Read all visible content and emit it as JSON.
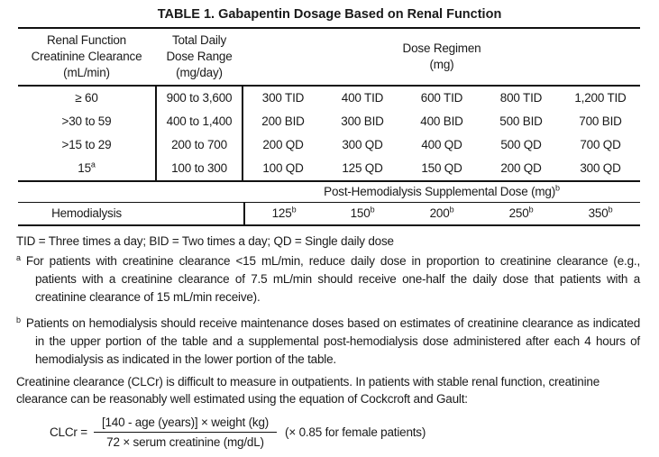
{
  "colors": {
    "background": "#ffffff",
    "text": "#1a1a1a",
    "rules": "#111111"
  },
  "title": "TABLE 1. Gabapentin Dosage Based on Renal Function",
  "table": {
    "header": {
      "col1": "Renal Function\nCreatinine Clearance\n(mL/min)",
      "col2": "Total Daily\nDose Range\n(mg/day)",
      "col3": "Dose Regimen\n(mg)"
    },
    "rows": [
      {
        "clcr": "≥ 60",
        "clcr_sup": "",
        "range": "900 to 3,600",
        "doses": [
          "300 TID",
          "400 TID",
          "600 TID",
          "800 TID",
          "1,200 TID"
        ]
      },
      {
        "clcr": ">30 to 59",
        "clcr_sup": "",
        "range": "400 to 1,400",
        "doses": [
          "200 BID",
          "300 BID",
          "400 BID",
          "500 BID",
          "700 BID"
        ]
      },
      {
        "clcr": ">15 to 29",
        "clcr_sup": "",
        "range": "200 to 700",
        "doses": [
          "200 QD",
          "300 QD",
          "400 QD",
          "500 QD",
          "700 QD"
        ]
      },
      {
        "clcr": "15",
        "clcr_sup": "a",
        "range": "100 to 300",
        "doses": [
          "100 QD",
          "125 QD",
          "150 QD",
          "200 QD",
          "300 QD"
        ]
      }
    ],
    "post_hemo": {
      "text": "Post-Hemodialysis Supplemental Dose (mg)",
      "sup": "b"
    },
    "hemo": {
      "label": "Hemodialysis",
      "values": [
        {
          "v": "125",
          "sup": "b"
        },
        {
          "v": "150",
          "sup": "b"
        },
        {
          "v": "200",
          "sup": "b"
        },
        {
          "v": "250",
          "sup": "b"
        },
        {
          "v": "350",
          "sup": "b"
        }
      ]
    }
  },
  "footnotes": {
    "abbrev": "TID = Three times a day; BID = Two times a day; QD = Single daily dose",
    "a": {
      "marker": "a",
      "text": "For patients with creatinine clearance <15 mL/min, reduce daily dose in proportion to creatinine clearance (e.g., patients with a creatinine clearance of 7.5 mL/min should receive one-half the daily dose that patients with a creatinine clearance of 15 mL/min receive)."
    },
    "b": {
      "marker": "b",
      "text": "Patients on hemodialysis should receive maintenance doses based on estimates of creatinine clearance as indicated in the upper portion of the table and a supplemental post-hemodialysis dose administered after each 4 hours of hemodialysis as indicated in the lower portion of the table."
    }
  },
  "paragraph": "Creatinine clearance (CLCr) is difficult to measure in outpatients. In patients with stable renal function, creatinine clearance can be reasonably well estimated using the equation of Cockcroft and Gault:",
  "formula": {
    "lhs": "CLCr =",
    "numerator": "[140 - age (years)] × weight (kg)",
    "denominator": "72 × serum creatinine (mg/dL)",
    "suffix": "(× 0.85 for female patients)"
  }
}
